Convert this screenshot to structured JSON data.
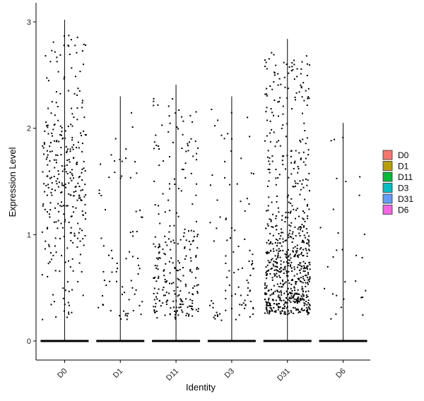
{
  "chart_data": {
    "type": "scatter",
    "subtype": "violin-jitter",
    "xlabel": "Identity",
    "ylabel": "Expression Level",
    "categories": [
      "D0",
      "D1",
      "D11",
      "D3",
      "D31",
      "D6"
    ],
    "ylim": [
      -0.18,
      3.2
    ],
    "yticks": [
      0,
      1,
      2,
      3
    ],
    "grid": false,
    "legend_position": "right",
    "legend": [
      {
        "label": "D0",
        "color": "#F8766D"
      },
      {
        "label": "D1",
        "color": "#B79F00"
      },
      {
        "label": "D11",
        "color": "#00BA38"
      },
      {
        "label": "D3",
        "color": "#00BFC4"
      },
      {
        "label": "D31",
        "color": "#619CFF"
      },
      {
        "label": "D6",
        "color": "#F564E3"
      }
    ],
    "series": [
      {
        "category": "D0",
        "max": 3.02,
        "cells_at_zero": true,
        "nonzero_points_approx": 320,
        "nonzero_range": [
          0.2,
          3.02
        ],
        "density_center": 1.5
      },
      {
        "category": "D1",
        "max": 2.3,
        "cells_at_zero": true,
        "nonzero_points_approx": 75,
        "nonzero_range": [
          0.2,
          2.3
        ],
        "density_center": 0.6
      },
      {
        "category": "D11",
        "max": 2.41,
        "cells_at_zero": true,
        "nonzero_points_approx": 260,
        "nonzero_range": [
          0.2,
          2.41
        ],
        "density_center": 0.5
      },
      {
        "category": "D3",
        "max": 2.3,
        "cells_at_zero": true,
        "nonzero_points_approx": 95,
        "nonzero_range": [
          0.15,
          2.3
        ],
        "density_center": 0.4
      },
      {
        "category": "D31",
        "max": 2.84,
        "cells_at_zero": true,
        "nonzero_points_approx": 720,
        "nonzero_range": [
          0.25,
          2.84
        ],
        "density_center": 0.55
      },
      {
        "category": "D6",
        "max": 2.05,
        "cells_at_zero": true,
        "nonzero_points_approx": 30,
        "nonzero_range": [
          0.2,
          2.05
        ],
        "density_center": 0.6
      }
    ]
  }
}
